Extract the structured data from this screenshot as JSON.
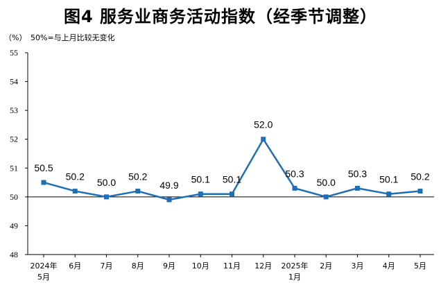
{
  "chart_data": {
    "type": "line",
    "title": "图4  服务业商务活动指数（经季节调整）",
    "unit": "（%）",
    "note": "50%=与上月比较无变化",
    "categories": [
      "2024年\n5月",
      "6月",
      "7月",
      "8月",
      "9月",
      "10月",
      "11月",
      "12月",
      "2025年\n1月",
      "2月",
      "3月",
      "4月",
      "5月"
    ],
    "values": [
      50.5,
      50.2,
      50.0,
      50.2,
      49.9,
      50.1,
      50.1,
      52.0,
      50.3,
      50.0,
      50.3,
      50.1,
      50.2
    ],
    "value_labels": [
      "50.5",
      "50.2",
      "50.0",
      "50.2",
      "49.9",
      "50.1",
      "50.1",
      "52.0",
      "50.3",
      "50.0",
      "50.3",
      "50.1",
      "50.2"
    ],
    "ylim": [
      48,
      55
    ],
    "yticks": [
      "48",
      "49",
      "50",
      "51",
      "52",
      "53",
      "54",
      "55"
    ],
    "baseline": 50,
    "grid": false,
    "legend": "none",
    "colors": {
      "line": "#1f6fb5",
      "marker": "#1f6fb5",
      "axis": "#000000",
      "baseline": "#000000"
    }
  }
}
